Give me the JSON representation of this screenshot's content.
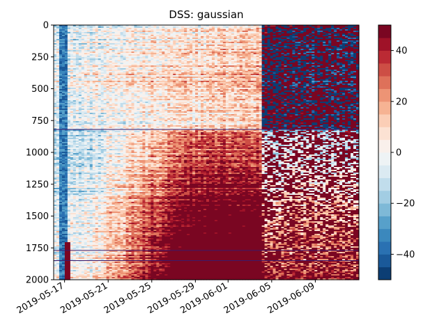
{
  "chart_data": {
    "type": "heatmap",
    "title": "DSS: gaussian",
    "xlabel": "",
    "ylabel": "",
    "x_ticks": [
      "2019-05-17",
      "2019-05-21",
      "2019-05-25",
      "2019-05-29",
      "2019-06-01",
      "2019-06-05",
      "2019-06-09"
    ],
    "x_range": [
      "2019-05-16",
      "2019-06-13"
    ],
    "y_ticks": [
      0,
      250,
      500,
      750,
      1000,
      1250,
      1500,
      1750,
      2000
    ],
    "y_range": [
      0,
      2000
    ],
    "y_inverted": true,
    "colorbar": {
      "ticks": [
        40,
        20,
        0,
        -20,
        -40
      ],
      "range": [
        -50,
        50
      ],
      "levels": 20,
      "colormap": "RdBu_r"
    },
    "line_rows": [
      820,
      1770,
      1850
    ],
    "line_color": "#3b1a6b"
  }
}
